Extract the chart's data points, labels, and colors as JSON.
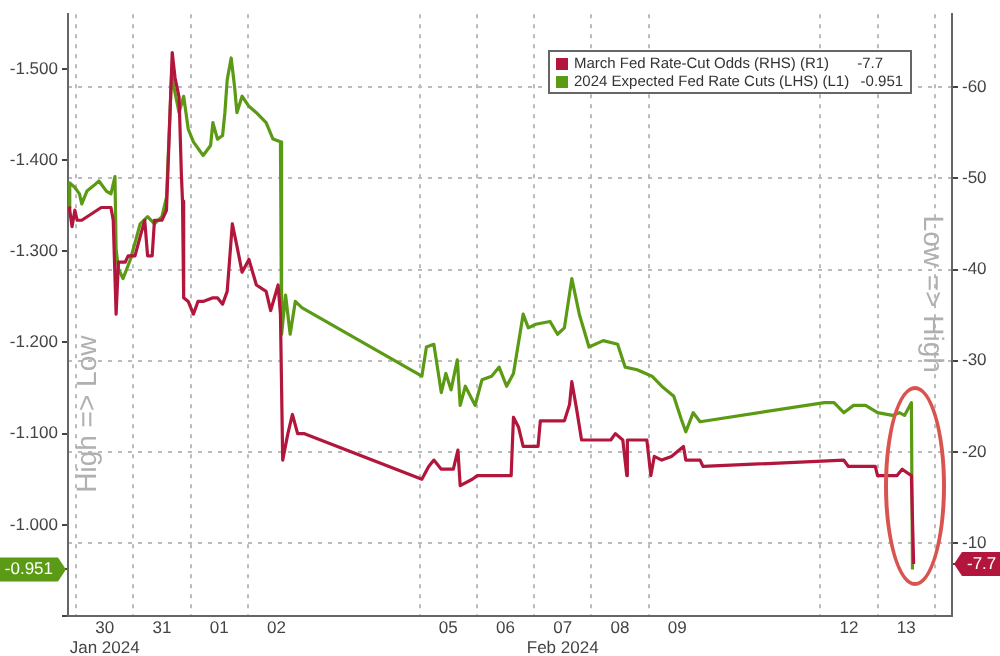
{
  "chart_data": {
    "type": "line",
    "ylabel": "High => Low",
    "y2label": "Low => High",
    "xlim": [
      "2024-01-29T20:38",
      "2024-02-14T07:12"
    ],
    "xticks": [
      {
        "value": "2024-01-30",
        "label": null
      },
      {
        "value": "2024-01-30T12:00",
        "label": "30\nJan 2024"
      },
      {
        "value": "2024-01-31",
        "label": null
      },
      {
        "value": "2024-01-31T12:00",
        "label": "31"
      },
      {
        "value": "2024-02-01",
        "label": null
      },
      {
        "value": "2024-02-01T12:00",
        "label": "01"
      },
      {
        "value": "2024-02-02",
        "label": null
      },
      {
        "value": "2024-02-02T12:00",
        "label": "02"
      },
      {
        "value": "2024-02-05",
        "label": null
      },
      {
        "value": "2024-02-05T12:00",
        "label": "05"
      },
      {
        "value": "2024-02-06",
        "label": null
      },
      {
        "value": "2024-02-06T12:00",
        "label": "06"
      },
      {
        "value": "2024-02-07",
        "label": null
      },
      {
        "value": "2024-02-07T12:00",
        "label": "07\nFeb 2024"
      },
      {
        "value": "2024-02-08",
        "label": null
      },
      {
        "value": "2024-02-08T12:00",
        "label": "08"
      },
      {
        "value": "2024-02-09",
        "label": null
      },
      {
        "value": "2024-02-09T12:00",
        "label": "09"
      },
      {
        "value": "2024-02-12",
        "label": null
      },
      {
        "value": "2024-02-12T12:00",
        "label": "12"
      },
      {
        "value": "2024-02-13",
        "label": null
      },
      {
        "value": "2024-02-13T12:00",
        "label": "13"
      },
      {
        "value": "2024-02-14",
        "label": null
      }
    ],
    "ylim": [
      -0.9,
      -1.56
    ],
    "yticks": [
      {
        "value": -1.5,
        "label": "-1.500"
      },
      {
        "value": -1.4,
        "label": "-1.400"
      },
      {
        "value": -1.3,
        "label": "-1.300"
      },
      {
        "value": -1.2,
        "label": "-1.200"
      },
      {
        "value": -1.1,
        "label": "-1.100"
      },
      {
        "value": -1.0,
        "label": "-1.000"
      },
      {
        "value": -0.951,
        "label": "-0.951"
      },
      {
        "value": -0.9,
        "label": null
      }
    ],
    "y2lim": [
      -2,
      -68
    ],
    "y2ticks": [
      -60,
      -50,
      -40,
      -30,
      -20,
      -10,
      {
        "value": -7.7,
        "label": "-7.7"
      }
    ],
    "grid": true,
    "legend": "top right",
    "marker": "none",
    "line_style": "solid",
    "series": [
      {
        "name": "March Fed Rate-Cut Odds (RHS) (R1)",
        "color": "#b3163c",
        "axis": "y2",
        "x": [
          "2024-01-29T20:38",
          "2024-01-29T21:22",
          "2024-01-29T22:19",
          "2024-01-29T23:31",
          "2024-01-30T00:29",
          "2024-01-30T02:24",
          "2024-01-30T10:34",
          "2024-01-30T14:38",
          "2024-01-30T15:36",
          "2024-01-30T16:48",
          "2024-01-30T17:46",
          "2024-01-30T20:38",
          "2024-01-30T21:50",
          "2024-01-31T00:43",
          "2024-01-31T02:53",
          "2024-01-31T04:48",
          "2024-01-31T06:00",
          "2024-01-31T07:55",
          "2024-01-31T08:53",
          "2024-01-31T12:00",
          "2024-01-31T13:55",
          "2024-01-31T16:19",
          "2024-01-31T17:31",
          "2024-01-31T19:12",
          "2024-01-31T20:10",
          "2024-01-31T20:38",
          "2024-01-31T21:07",
          "2024-01-31T23:02",
          "2024-02-01T01:12",
          "2024-02-01T03:07",
          "2024-02-01T05:17",
          "2024-02-01T09:22",
          "2024-02-01T11:17",
          "2024-02-01T13:26",
          "2024-02-01T15:22",
          "2024-02-01T17:31",
          "2024-02-01T19:26",
          "2024-02-01T21:36",
          "2024-02-02T00:29",
          "2024-02-02T03:36",
          "2024-02-02T07:41",
          "2024-02-02T09:36",
          "2024-02-02T12:43",
          "2024-02-02T13:41",
          "2024-02-02T14:38",
          "2024-02-02T16:48",
          "2024-02-02T18:43",
          "2024-02-02T20:53",
          "2024-02-02T23:46",
          "2024-02-05T00:58",
          "2024-02-05T03:50",
          "2024-02-05T06:00",
          "2024-02-05T09:07",
          "2024-02-05T14:10",
          "2024-02-05T16:05",
          "2024-02-05T17:02",
          "2024-02-05T22:05",
          "2024-02-06T00:14",
          "2024-02-06T12:29",
          "2024-02-06T14:24",
          "2024-02-06T15:22",
          "2024-02-06T17:31",
          "2024-02-06T19:26",
          "2024-02-07T01:41",
          "2024-02-07T02:38",
          "2024-02-07T12:43",
          "2024-02-07T14:53",
          "2024-02-07T15:50",
          "2024-02-07T17:46",
          "2024-02-07T19:55",
          "2024-02-08T08:10",
          "2024-02-08T10:05",
          "2024-02-08T13:12",
          "2024-02-08T14:53",
          "2024-02-08T15:07",
          "2024-02-08T23:17",
          "2024-02-09T00:58",
          "2024-02-09T02:24",
          "2024-02-09T05:31",
          "2024-02-09T09:36",
          "2024-02-09T14:38",
          "2024-02-09T15:36",
          "2024-02-09T21:36",
          "2024-02-09T22:48",
          "2024-02-12T09:50",
          "2024-02-12T11:46",
          "2024-02-12T23:02",
          "2024-02-13T00:00",
          "2024-02-13T08:10",
          "2024-02-13T10:19",
          "2024-02-13T14:10",
          "2024-02-13T15:07"
        ],
        "values": [
          -46.8,
          -46.5,
          -44.7,
          -46.5,
          -45.4,
          -45.4,
          -46.8,
          -46.8,
          -45.4,
          -35.1,
          -40.8,
          -40.8,
          -41.5,
          -41.5,
          -43.6,
          -45.4,
          -41.5,
          -41.5,
          -45.4,
          -45.4,
          -46.5,
          -63.8,
          -61.0,
          -58.9,
          -50.4,
          -47.5,
          -36.9,
          -36.5,
          -35.1,
          -36.5,
          -36.5,
          -36.9,
          -36.9,
          -36.2,
          -37.6,
          -45.0,
          -42.6,
          -39.7,
          -41.1,
          -38.3,
          -37.6,
          -35.5,
          -38.3,
          -35.1,
          -19.1,
          -22.0,
          -24.1,
          -22.0,
          -22.0,
          -17.0,
          -18.4,
          -19.1,
          -18.1,
          -18.1,
          -20.2,
          -16.3,
          -17.0,
          -17.4,
          -17.4,
          -17.4,
          -23.8,
          -22.7,
          -20.6,
          -20.6,
          -23.4,
          -23.4,
          -25.2,
          -27.7,
          -24.8,
          -21.3,
          -21.3,
          -22.0,
          -21.3,
          -17.4,
          -21.3,
          -21.3,
          -17.4,
          -19.5,
          -19.1,
          -19.5,
          -20.6,
          -19.1,
          -19.1,
          -18.4,
          -19.1,
          -18.4,
          -18.4,
          -17.4,
          -17.4,
          -18.1,
          -17.4,
          -7.7
        ]
      },
      {
        "name": "2024 Expected Fed Rate Cuts (LHS) (L1)",
        "color": "#5b9a14",
        "axis": "y",
        "x": [
          "2024-01-29T20:38",
          "2024-01-29T21:22",
          "2024-01-29T23:31",
          "2024-01-30T01:26",
          "2024-01-30T02:24",
          "2024-01-30T04:34",
          "2024-01-30T07:26",
          "2024-01-30T09:36",
          "2024-01-30T12:43",
          "2024-01-30T14:38",
          "2024-01-30T16:19",
          "2024-01-30T16:48",
          "2024-01-30T17:46",
          "2024-01-30T19:41",
          "2024-01-30T22:48",
          "2024-01-31T02:53",
          "2024-01-31T06:00",
          "2024-01-31T08:53",
          "2024-01-31T12:00",
          "2024-01-31T13:55",
          "2024-01-31T16:05",
          "2024-01-31T17:02",
          "2024-01-31T19:12",
          "2024-01-31T21:07",
          "2024-01-31T23:02",
          "2024-02-01T01:12",
          "2024-02-01T05:17",
          "2024-02-01T08:24",
          "2024-02-01T09:22",
          "2024-02-01T11:17",
          "2024-02-01T13:26",
          "2024-02-01T14:24",
          "2024-02-01T15:22",
          "2024-02-01T17:02",
          "2024-02-01T18:29",
          "2024-02-01T19:26",
          "2024-02-01T21:36",
          "2024-02-02T00:29",
          "2024-02-02T03:36",
          "2024-02-02T07:41",
          "2024-02-02T10:34",
          "2024-02-02T13:41",
          "2024-02-02T14:10",
          "2024-02-02T15:50",
          "2024-02-02T17:46",
          "2024-02-02T19:55",
          "2024-02-02T22:48",
          "2024-02-05T00:58",
          "2024-02-05T02:53",
          "2024-02-05T06:00",
          "2024-02-05T09:07",
          "2024-02-05T11:02",
          "2024-02-05T13:12",
          "2024-02-05T15:50",
          "2024-02-05T17:02",
          "2024-02-05T19:12",
          "2024-02-05T23:17",
          "2024-02-06T02:10",
          "2024-02-06T06:14",
          "2024-02-06T09:22",
          "2024-02-06T12:29",
          "2024-02-06T15:22",
          "2024-02-06T19:26",
          "2024-02-06T21:36",
          "2024-02-07T00:43",
          "2024-02-07T06:43",
          "2024-02-07T09:50",
          "2024-02-07T12:43",
          "2024-02-07T15:50",
          "2024-02-07T18:58",
          "2024-02-07T23:02",
          "2024-02-08T05:02",
          "2024-02-08T11:02",
          "2024-02-08T14:10",
          "2024-02-08T19:12",
          "2024-02-09T01:26",
          "2024-02-09T05:31",
          "2024-02-09T10:34",
          "2024-02-09T13:41",
          "2024-02-09T15:36",
          "2024-02-09T18:43",
          "2024-02-09T21:36",
          "2024-02-12T01:41",
          "2024-02-12T05:46",
          "2024-02-12T09:50",
          "2024-02-12T13:55",
          "2024-02-12T18:58",
          "2024-02-13T00:00",
          "2024-02-13T06:14",
          "2024-02-13T09:07",
          "2024-02-13T11:17",
          "2024-02-13T14:10",
          "2024-02-13T14:38"
        ],
        "values": [
          -1.348,
          -1.375,
          -1.37,
          -1.363,
          -1.352,
          -1.366,
          -1.372,
          -1.377,
          -1.366,
          -1.363,
          -1.382,
          -1.302,
          -1.281,
          -1.27,
          -1.291,
          -1.33,
          -1.338,
          -1.33,
          -1.338,
          -1.359,
          -1.495,
          -1.48,
          -1.452,
          -1.47,
          -1.434,
          -1.42,
          -1.405,
          -1.416,
          -1.441,
          -1.423,
          -1.427,
          -1.452,
          -1.488,
          -1.512,
          -1.48,
          -1.452,
          -1.47,
          -1.459,
          -1.452,
          -1.441,
          -1.423,
          -1.42,
          -1.209,
          -1.252,
          -1.209,
          -1.245,
          -1.238,
          -1.163,
          -1.195,
          -1.198,
          -1.145,
          -1.166,
          -1.148,
          -1.181,
          -1.131,
          -1.152,
          -1.131,
          -1.159,
          -1.163,
          -1.173,
          -1.152,
          -1.166,
          -1.231,
          -1.216,
          -1.22,
          -1.223,
          -1.209,
          -1.216,
          -1.27,
          -1.231,
          -1.195,
          -1.202,
          -1.198,
          -1.173,
          -1.17,
          -1.163,
          -1.152,
          -1.141,
          -1.116,
          -1.102,
          -1.123,
          -1.113,
          -1.134,
          -1.134,
          -1.123,
          -1.131,
          -1.131,
          -1.123,
          -1.12,
          -1.123,
          -1.12,
          -1.134,
          -0.951
        ]
      }
    ]
  }
}
